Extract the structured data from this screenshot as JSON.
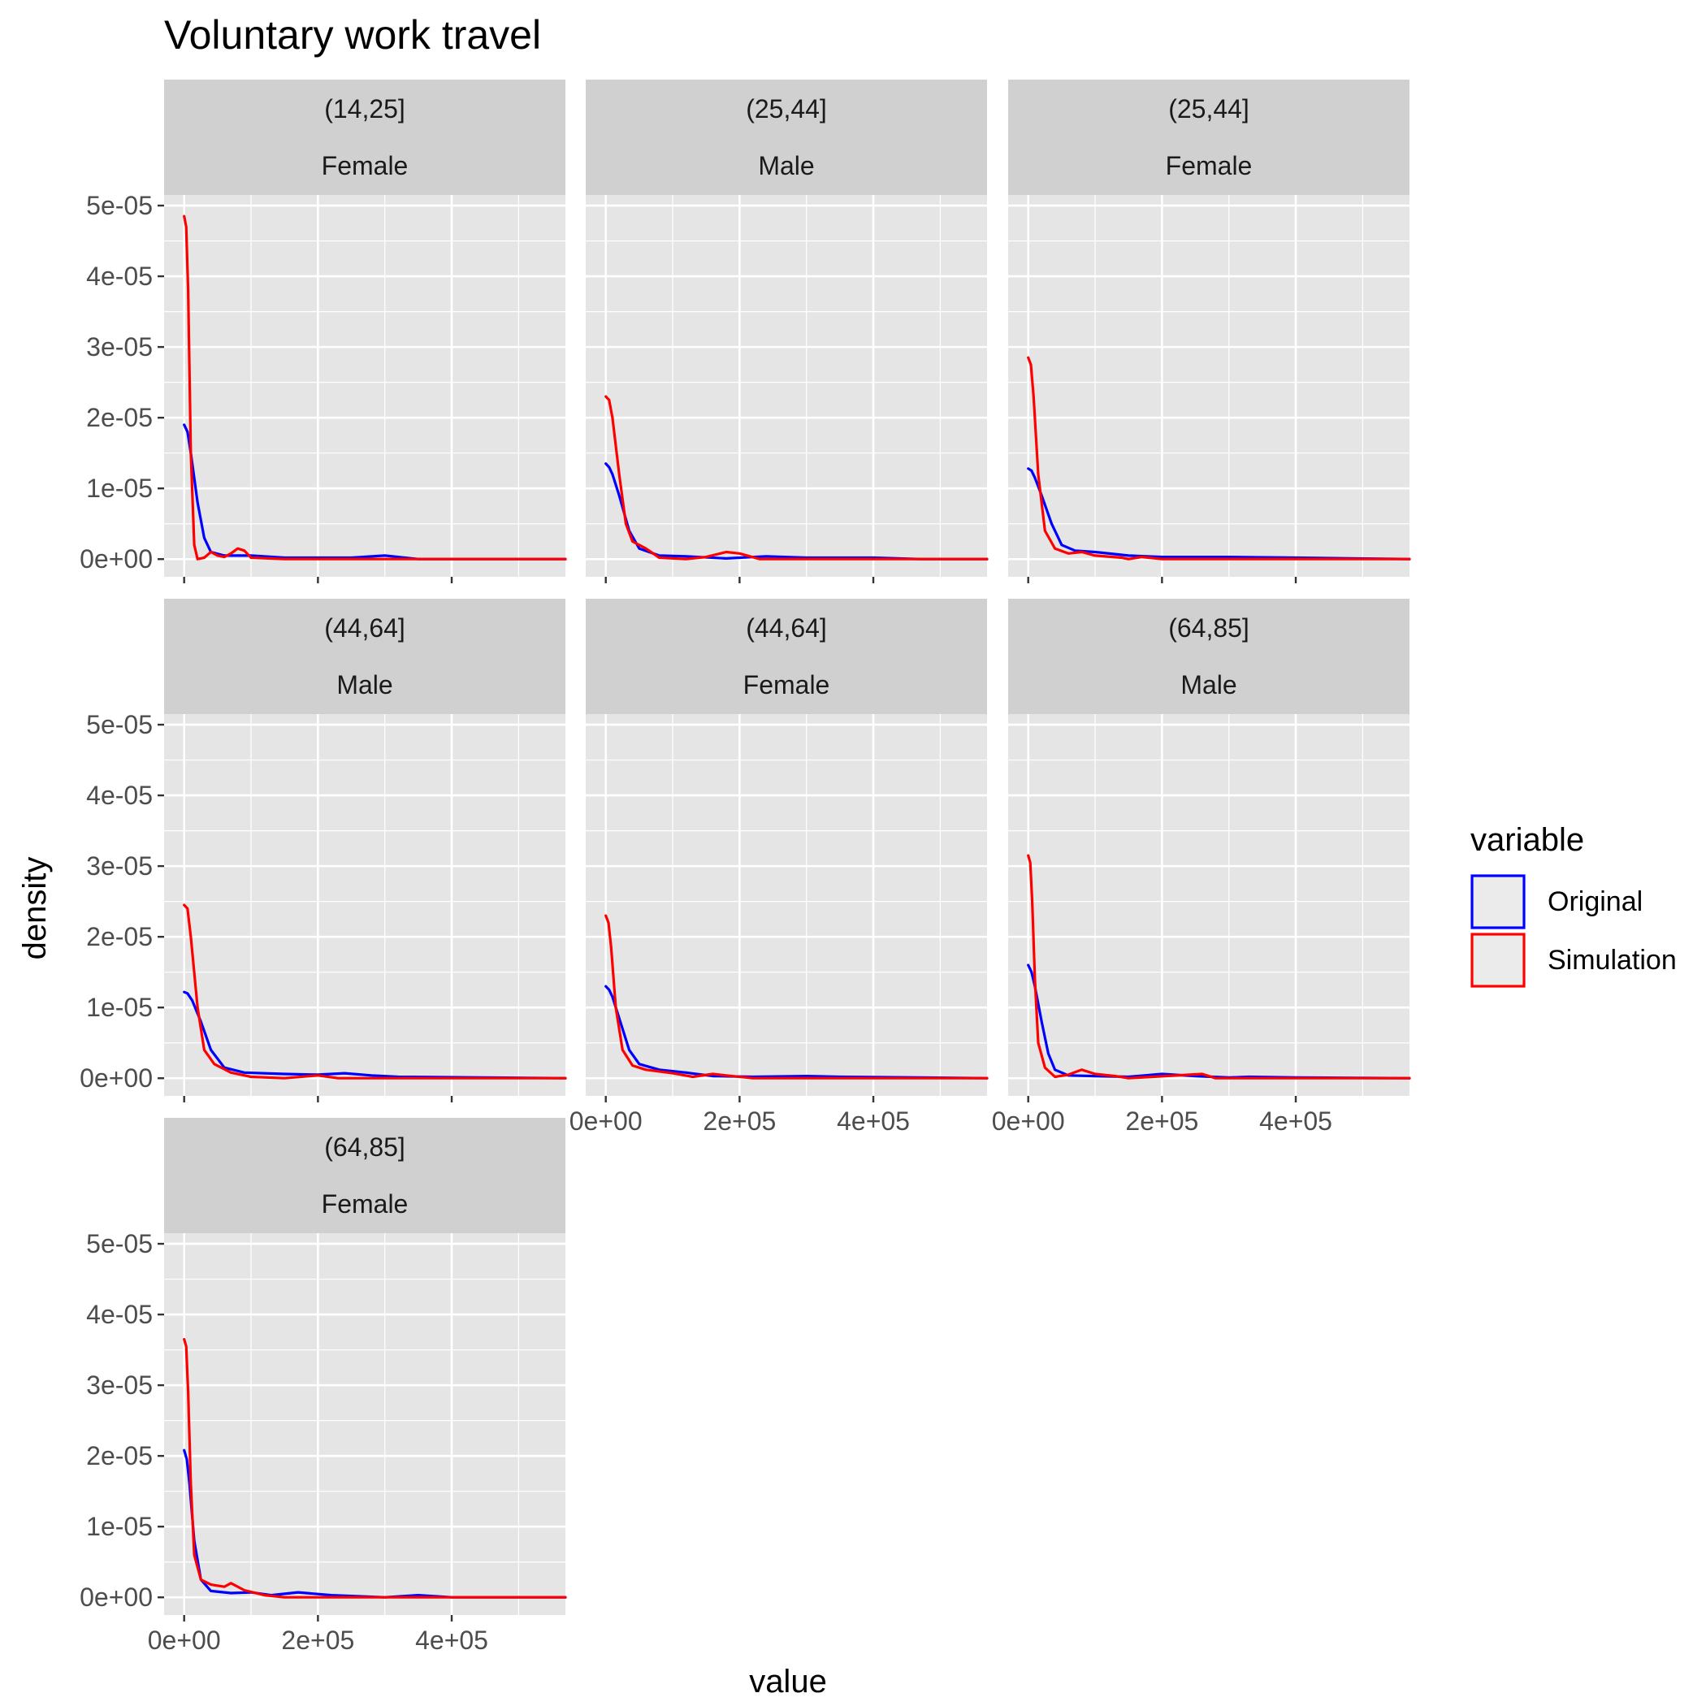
{
  "chart_data": {
    "type": "line",
    "title": "Voluntary work travel",
    "xlabel": "value",
    "ylabel": "density",
    "xlim": [
      -30000,
      570000
    ],
    "ylim": [
      -2500,
      51500
    ],
    "x_ticks": [
      0,
      200000,
      400000
    ],
    "x_tick_labels": [
      "0e+00",
      "2e+05",
      "4e+05"
    ],
    "y_ticks": [
      0,
      10000,
      20000,
      30000,
      40000,
      50000
    ],
    "y_tick_labels": [
      "0e+00",
      "1e-05",
      "2e-05",
      "3e-05",
      "4e-05",
      "5e-05"
    ],
    "y_scale_note": "",
    "grid": true,
    "legend": {
      "title": "variable",
      "position": "right",
      "entries": [
        {
          "label": "Original",
          "color": "#0000ff"
        },
        {
          "label": "Simulation",
          "color": "#ff0000"
        }
      ]
    },
    "colors": {
      "Original": "#0000ff",
      "Simulation": "#ff0000",
      "panel_bg": "#e5e5e5",
      "strip_bg": "#d0d0d0",
      "grid": "#ffffff"
    },
    "panels": [
      {
        "age": "(14,25]",
        "sex": "Female",
        "series": [
          {
            "name": "Original",
            "points": [
              [
                0,
                19000
              ],
              [
                5000,
                18000
              ],
              [
                10000,
                15000
              ],
              [
                20000,
                8000
              ],
              [
                30000,
                3000
              ],
              [
                40000,
                1000
              ],
              [
                60000,
                500
              ],
              [
                100000,
                500
              ],
              [
                150000,
                200
              ],
              [
                250000,
                200
              ],
              [
                300000,
                500
              ],
              [
                350000,
                0
              ],
              [
                570000,
                0
              ]
            ]
          },
          {
            "name": "Simulation",
            "points": [
              [
                0,
                48500
              ],
              [
                3000,
                47000
              ],
              [
                6000,
                38000
              ],
              [
                10000,
                15000
              ],
              [
                15000,
                2000
              ],
              [
                20000,
                0
              ],
              [
                30000,
                200
              ],
              [
                40000,
                1000
              ],
              [
                50000,
                500
              ],
              [
                60000,
                300
              ],
              [
                70000,
                800
              ],
              [
                80000,
                1500
              ],
              [
                90000,
                1200
              ],
              [
                100000,
                200
              ],
              [
                150000,
                0
              ],
              [
                570000,
                0
              ]
            ]
          }
        ]
      },
      {
        "age": "(25,44]",
        "sex": "Male",
        "series": [
          {
            "name": "Original",
            "points": [
              [
                0,
                13500
              ],
              [
                5000,
                13000
              ],
              [
                10000,
                12000
              ],
              [
                20000,
                9000
              ],
              [
                35000,
                4000
              ],
              [
                50000,
                1500
              ],
              [
                80000,
                500
              ],
              [
                120000,
                400
              ],
              [
                180000,
                100
              ],
              [
                240000,
                400
              ],
              [
                300000,
                200
              ],
              [
                400000,
                200
              ],
              [
                470000,
                0
              ],
              [
                570000,
                0
              ]
            ]
          },
          {
            "name": "Simulation",
            "points": [
              [
                0,
                23000
              ],
              [
                5000,
                22500
              ],
              [
                10000,
                20000
              ],
              [
                20000,
                12000
              ],
              [
                30000,
                5000
              ],
              [
                40000,
                2500
              ],
              [
                60000,
                1500
              ],
              [
                80000,
                200
              ],
              [
                120000,
                0
              ],
              [
                150000,
                300
              ],
              [
                180000,
                1000
              ],
              [
                200000,
                800
              ],
              [
                230000,
                0
              ],
              [
                570000,
                0
              ]
            ]
          }
        ]
      },
      {
        "age": "(25,44]",
        "sex": "Female",
        "series": [
          {
            "name": "Original",
            "points": [
              [
                0,
                12800
              ],
              [
                5000,
                12500
              ],
              [
                10000,
                11500
              ],
              [
                20000,
                9000
              ],
              [
                35000,
                5000
              ],
              [
                50000,
                2000
              ],
              [
                70000,
                1200
              ],
              [
                100000,
                1000
              ],
              [
                150000,
                500
              ],
              [
                200000,
                300
              ],
              [
                300000,
                300
              ],
              [
                400000,
                200
              ],
              [
                570000,
                0
              ]
            ]
          },
          {
            "name": "Simulation",
            "points": [
              [
                0,
                28500
              ],
              [
                4000,
                27500
              ],
              [
                8000,
                23000
              ],
              [
                15000,
                12000
              ],
              [
                25000,
                4000
              ],
              [
                40000,
                1500
              ],
              [
                60000,
                800
              ],
              [
                80000,
                1000
              ],
              [
                100000,
                500
              ],
              [
                140000,
                200
              ],
              [
                150000,
                0
              ],
              [
                170000,
                300
              ],
              [
                200000,
                0
              ],
              [
                570000,
                0
              ]
            ]
          }
        ]
      },
      {
        "age": "(44,64]",
        "sex": "Male",
        "series": [
          {
            "name": "Original",
            "points": [
              [
                0,
                12200
              ],
              [
                5000,
                12000
              ],
              [
                12000,
                11000
              ],
              [
                25000,
                8000
              ],
              [
                40000,
                4000
              ],
              [
                60000,
                1500
              ],
              [
                90000,
                800
              ],
              [
                150000,
                600
              ],
              [
                200000,
                500
              ],
              [
                240000,
                700
              ],
              [
                280000,
                400
              ],
              [
                320000,
                200
              ],
              [
                570000,
                0
              ]
            ]
          },
          {
            "name": "Simulation",
            "points": [
              [
                0,
                24500
              ],
              [
                5000,
                24000
              ],
              [
                10000,
                20000
              ],
              [
                20000,
                10000
              ],
              [
                30000,
                4000
              ],
              [
                45000,
                2000
              ],
              [
                70000,
                800
              ],
              [
                100000,
                200
              ],
              [
                150000,
                0
              ],
              [
                200000,
                400
              ],
              [
                230000,
                0
              ],
              [
                300000,
                0
              ],
              [
                570000,
                0
              ]
            ]
          }
        ]
      },
      {
        "age": "(44,64]",
        "sex": "Female",
        "series": [
          {
            "name": "Original",
            "points": [
              [
                0,
                13000
              ],
              [
                5000,
                12500
              ],
              [
                10000,
                11500
              ],
              [
                20000,
                8500
              ],
              [
                35000,
                4000
              ],
              [
                50000,
                2000
              ],
              [
                80000,
                1200
              ],
              [
                120000,
                800
              ],
              [
                160000,
                300
              ],
              [
                220000,
                200
              ],
              [
                300000,
                300
              ],
              [
                350000,
                200
              ],
              [
                570000,
                0
              ]
            ]
          },
          {
            "name": "Simulation",
            "points": [
              [
                0,
                23000
              ],
              [
                4000,
                22000
              ],
              [
                8000,
                18500
              ],
              [
                15000,
                10000
              ],
              [
                25000,
                4000
              ],
              [
                40000,
                1800
              ],
              [
                60000,
                1200
              ],
              [
                100000,
                700
              ],
              [
                130000,
                200
              ],
              [
                160000,
                600
              ],
              [
                180000,
                400
              ],
              [
                220000,
                0
              ],
              [
                570000,
                0
              ]
            ]
          }
        ]
      },
      {
        "age": "(64,85]",
        "sex": "Male",
        "series": [
          {
            "name": "Original",
            "points": [
              [
                0,
                16000
              ],
              [
                5000,
                15000
              ],
              [
                10000,
                13000
              ],
              [
                20000,
                8000
              ],
              [
                30000,
                3500
              ],
              [
                40000,
                1200
              ],
              [
                60000,
                400
              ],
              [
                100000,
                300
              ],
              [
                150000,
                200
              ],
              [
                200000,
                600
              ],
              [
                250000,
                300
              ],
              [
                300000,
                100
              ],
              [
                330000,
                200
              ],
              [
                400000,
                100
              ],
              [
                570000,
                0
              ]
            ]
          },
          {
            "name": "Simulation",
            "points": [
              [
                0,
                31500
              ],
              [
                3000,
                30500
              ],
              [
                6000,
                25000
              ],
              [
                10000,
                14000
              ],
              [
                15000,
                5000
              ],
              [
                25000,
                1500
              ],
              [
                40000,
                200
              ],
              [
                60000,
                500
              ],
              [
                80000,
                1200
              ],
              [
                100000,
                600
              ],
              [
                130000,
                300
              ],
              [
                150000,
                0
              ],
              [
                260000,
                600
              ],
              [
                280000,
                0
              ],
              [
                570000,
                0
              ]
            ]
          }
        ]
      },
      {
        "age": "(64,85]",
        "sex": "Female",
        "series": [
          {
            "name": "Original",
            "points": [
              [
                0,
                20800
              ],
              [
                4000,
                19500
              ],
              [
                8000,
                16000
              ],
              [
                15000,
                8000
              ],
              [
                25000,
                2500
              ],
              [
                40000,
                900
              ],
              [
                70000,
                600
              ],
              [
                100000,
                700
              ],
              [
                130000,
                300
              ],
              [
                170000,
                700
              ],
              [
                220000,
                300
              ],
              [
                300000,
                0
              ],
              [
                350000,
                300
              ],
              [
                400000,
                0
              ],
              [
                570000,
                0
              ]
            ]
          },
          {
            "name": "Simulation",
            "points": [
              [
                0,
                36500
              ],
              [
                3000,
                35500
              ],
              [
                6000,
                29000
              ],
              [
                10000,
                16000
              ],
              [
                15000,
                6000
              ],
              [
                25000,
                2500
              ],
              [
                40000,
                1800
              ],
              [
                60000,
                1500
              ],
              [
                70000,
                2000
              ],
              [
                90000,
                1000
              ],
              [
                120000,
                300
              ],
              [
                150000,
                0
              ],
              [
                570000,
                0
              ]
            ]
          }
        ]
      }
    ]
  }
}
